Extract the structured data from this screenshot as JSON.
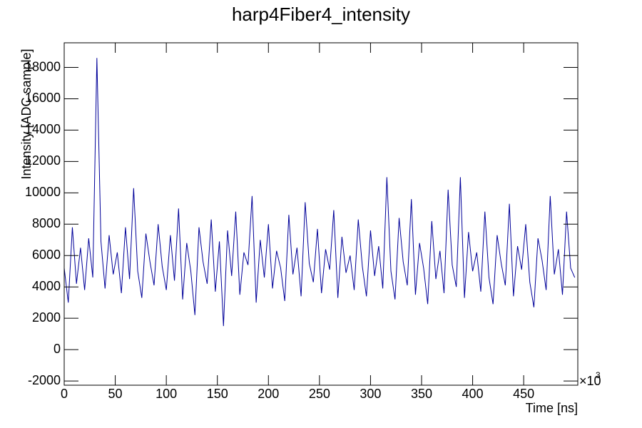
{
  "chart_data": {
    "type": "line",
    "title": "harp4Fiber4_intensity",
    "xlabel": "Time [ns]",
    "ylabel": "Intensity [ADC sample]",
    "x_scale_base": "×10",
    "x_scale_exponent": "3",
    "color": "#000099",
    "xlim": [
      0,
      503
    ],
    "ylim": [
      -2270,
      19570
    ],
    "xticks": [
      0,
      50,
      100,
      150,
      200,
      250,
      300,
      350,
      400,
      450
    ],
    "yticks": [
      -2000,
      0,
      2000,
      4000,
      6000,
      8000,
      10000,
      12000,
      14000,
      16000,
      18000
    ],
    "x": [
      0,
      4,
      8,
      12,
      16,
      20,
      24,
      28,
      32,
      36,
      40,
      44,
      48,
      52,
      56,
      60,
      64,
      68,
      72,
      76,
      80,
      84,
      88,
      92,
      96,
      100,
      104,
      108,
      112,
      116,
      120,
      124,
      128,
      132,
      136,
      140,
      144,
      148,
      152,
      156,
      160,
      164,
      168,
      172,
      176,
      180,
      184,
      188,
      192,
      196,
      200,
      204,
      208,
      212,
      216,
      220,
      224,
      228,
      232,
      236,
      240,
      244,
      248,
      252,
      256,
      260,
      264,
      268,
      272,
      276,
      280,
      284,
      288,
      292,
      296,
      300,
      304,
      308,
      312,
      316,
      320,
      324,
      328,
      332,
      336,
      340,
      344,
      348,
      352,
      356,
      360,
      364,
      368,
      372,
      376,
      380,
      384,
      388,
      392,
      396,
      400,
      404,
      408,
      412,
      416,
      420,
      424,
      428,
      432,
      436,
      440,
      444,
      448,
      452,
      456,
      460,
      464,
      468,
      472,
      476,
      480,
      484,
      488,
      492,
      496,
      500
    ],
    "values": [
      5200,
      3000,
      7800,
      4200,
      6500,
      3800,
      7100,
      4600,
      18600,
      6900,
      3900,
      7300,
      4800,
      6200,
      3600,
      7800,
      4500,
      10300,
      5000,
      3300,
      7400,
      5600,
      4100,
      8000,
      5300,
      3800,
      7300,
      4400,
      9000,
      3200,
      6800,
      5000,
      2200,
      7800,
      5600,
      4200,
      8300,
      3700,
      6900,
      1500,
      7600,
      4700,
      8800,
      3500,
      6200,
      5400,
      9800,
      3000,
      7000,
      4600,
      8000,
      3900,
      6300,
      5200,
      3100,
      8600,
      4800,
      6500,
      3400,
      9400,
      5500,
      4300,
      7700,
      3600,
      6400,
      5100,
      8900,
      3300,
      7200,
      4900,
      6000,
      3800,
      8300,
      5300,
      3400,
      7600,
      4700,
      6600,
      3900,
      11000,
      5000,
      3200,
      8400,
      5600,
      4100,
      9600,
      3500,
      6800,
      5200,
      2900,
      8200,
      4500,
      6300,
      3600,
      10200,
      5400,
      4000,
      11000,
      3300,
      7500,
      5000,
      6200,
      3700,
      8800,
      4600,
      2900,
      7300,
      5500,
      4100,
      9300,
      3400,
      6600,
      5100,
      8000,
      4300,
      2700,
      7100,
      5700,
      3800,
      9800,
      4800,
      6400,
      3500,
      8800,
      5200,
      4600
    ]
  }
}
